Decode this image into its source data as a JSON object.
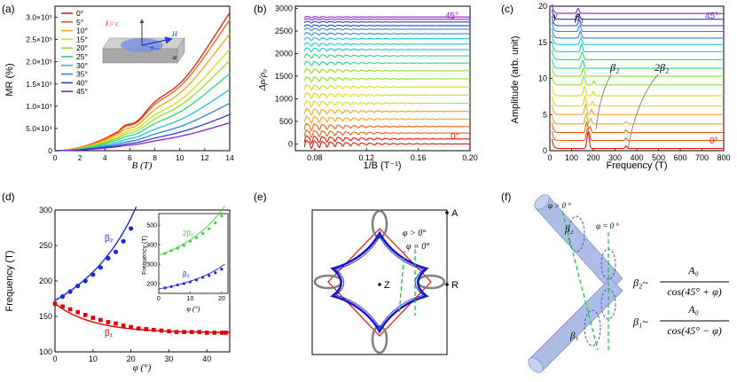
{
  "panel_labels": [
    "(a)",
    "(b)",
    "(c)",
    "(d)",
    "(e)",
    "(f)"
  ],
  "colors": {
    "sequence": [
      "#e8180d",
      "#f5600e",
      "#f9a21b",
      "#d9d91a",
      "#8ee02d",
      "#2fd67a",
      "#1ec7d6",
      "#2a86e0",
      "#2f3fc9",
      "#8a1fd6"
    ],
    "fit_blue": "#1a2bd9",
    "fit_red": "#e00000",
    "inset_green": "#3ad43a",
    "fermi_blue": "#1515d0",
    "fermi_red": "#e01010",
    "fermi_gray": "#808080",
    "dashed_green": "#22bb44",
    "cylinder_fill": "#aebde6"
  },
  "chart_data": [
    {
      "panel": "(a)",
      "type": "line",
      "xlabel": "B (T)",
      "ylabel": "MR (%)",
      "xlim": [
        0,
        14
      ],
      "ylim": [
        0,
        325000
      ],
      "x_ticks": [
        0,
        2,
        4,
        6,
        8,
        10,
        12,
        14
      ],
      "y_ticks": [
        "0",
        "5.0×10⁴",
        "1.0×10⁵",
        "1.5×10⁵",
        "2.0×10⁵",
        "2.5×10⁵",
        "3.0×10⁵"
      ],
      "y_tick_values": [
        0,
        50000,
        100000,
        150000,
        200000,
        250000,
        300000
      ],
      "legend": [
        "0°",
        "5°",
        "10°",
        "15°",
        "20°",
        "25°",
        "30°",
        "35°",
        "40°",
        "45°"
      ],
      "legend_position": "top-left",
      "inset_labels": {
        "current": "I // c",
        "field": "H",
        "angle": "φ",
        "axis": "a"
      },
      "series_end_values": [
        300000,
        285000,
        255000,
        222000,
        198000,
        170000,
        135000,
        105000,
        80000,
        62000
      ]
    },
    {
      "panel": "(b)",
      "type": "line",
      "xlabel": "1/B (T⁻¹)",
      "ylabel": "Δρ/ρ₀",
      "xlim": [
        0.065,
        0.2
      ],
      "ylim": [
        -150,
        3050
      ],
      "x_ticks": [
        0.08,
        0.12,
        0.16,
        0.2
      ],
      "x_tick_labels": [
        "0.08",
        "0.12",
        "0.16",
        "0.20"
      ],
      "y_ticks": [
        0,
        500,
        1000,
        1500,
        2000,
        2500,
        3000
      ],
      "annotations": {
        "top": "45°",
        "bottom": "0°"
      },
      "series_offsets": [
        0,
        110,
        240,
        385,
        550,
        720,
        900,
        1080,
        1260,
        1440,
        1620,
        1790,
        1950,
        2090,
        2210,
        2330,
        2440,
        2540,
        2620,
        2700,
        2760,
        2810
      ]
    },
    {
      "panel": "(c)",
      "type": "line",
      "xlabel": "Frequency (T)",
      "ylabel": "Amplitude (arb. unit)",
      "xlim": [
        0,
        800
      ],
      "ylim": [
        0,
        20
      ],
      "x_ticks": [
        0,
        100,
        200,
        300,
        400,
        500,
        600,
        700,
        800
      ],
      "y_ticks": [
        0,
        5,
        10,
        15,
        20
      ],
      "annotations": {
        "gamma": "γ",
        "beta1": "β₁",
        "beta2": "β₂",
        "two_beta2": "2β₂",
        "top": "45°",
        "bottom": "0°"
      },
      "series_offsets": [
        0.3,
        1.4,
        2.5,
        3.7,
        5.0,
        6.2,
        7.6,
        9.1,
        10.3,
        11.4,
        12.6,
        13.7,
        14.7,
        15.6,
        16.5,
        17.3,
        18.2,
        19.0
      ]
    },
    {
      "panel": "(d)",
      "type": "scatter",
      "xlabel": "φ (°)",
      "ylabel": "Frequency (T)",
      "xlim": [
        0,
        46
      ],
      "ylim": [
        100,
        300
      ],
      "x_ticks": [
        0,
        10,
        20,
        30,
        40
      ],
      "y_ticks": [
        100,
        150,
        200,
        250,
        300
      ],
      "series": [
        {
          "name": "β₂",
          "x": [
            2,
            4,
            6,
            8,
            10,
            12,
            14,
            16,
            18,
            20
          ],
          "y": [
            178,
            185,
            193,
            200,
            209,
            219,
            232,
            241,
            256,
            274
          ]
        },
        {
          "name": "β₁",
          "x": [
            0,
            2,
            4,
            6,
            8,
            10,
            12,
            14,
            16,
            18,
            20,
            22,
            24,
            26,
            28,
            30,
            32,
            34,
            36,
            38,
            40,
            42,
            44,
            45
          ],
          "y": [
            168,
            164,
            160,
            156,
            152,
            148,
            145,
            142,
            140,
            137,
            135,
            133,
            132,
            131,
            130,
            129,
            128,
            128,
            128,
            128,
            127,
            127,
            127,
            127
          ]
        }
      ],
      "inset": {
        "xlabel": "φ (°)",
        "ylabel": "Frequency (T)",
        "xlim": [
          0,
          22
        ],
        "ylim": [
          150,
          560
        ],
        "x_ticks": [
          0,
          10,
          20
        ],
        "y_ticks": [
          200,
          300,
          400,
          500
        ],
        "series": [
          {
            "name": "2β₂",
            "x": [
              2,
              4,
              6,
              8,
              10,
              12,
              14,
              16,
              18,
              20
            ],
            "y": [
              355,
              370,
              382,
              396,
              418,
              436,
              458,
              482,
              512,
              548
            ]
          },
          {
            "name": "β₂",
            "x": [
              2,
              4,
              6,
              8,
              10,
              12,
              14,
              16,
              18,
              20
            ],
            "y": [
              178,
              185,
              193,
              200,
              209,
              219,
              232,
              241,
              256,
              274
            ]
          }
        ]
      }
    }
  ],
  "panel_e": {
    "labels": {
      "phi_gt": "φ > 0°",
      "phi_eq": "φ = 0°",
      "z": "Z",
      "a": "A",
      "r": "R"
    }
  },
  "panel_f": {
    "labels": {
      "phi_gt": "φ > 0 °",
      "phi_eq": "φ = 0 °",
      "beta2": "β₂",
      "beta1": "β₁"
    },
    "formulas": [
      {
        "lhs": "β₂~",
        "num": "A₀",
        "den": "cos(45° + φ)"
      },
      {
        "lhs": "β₁~",
        "num": "A₀",
        "den": "cos(45° − φ)"
      }
    ]
  }
}
